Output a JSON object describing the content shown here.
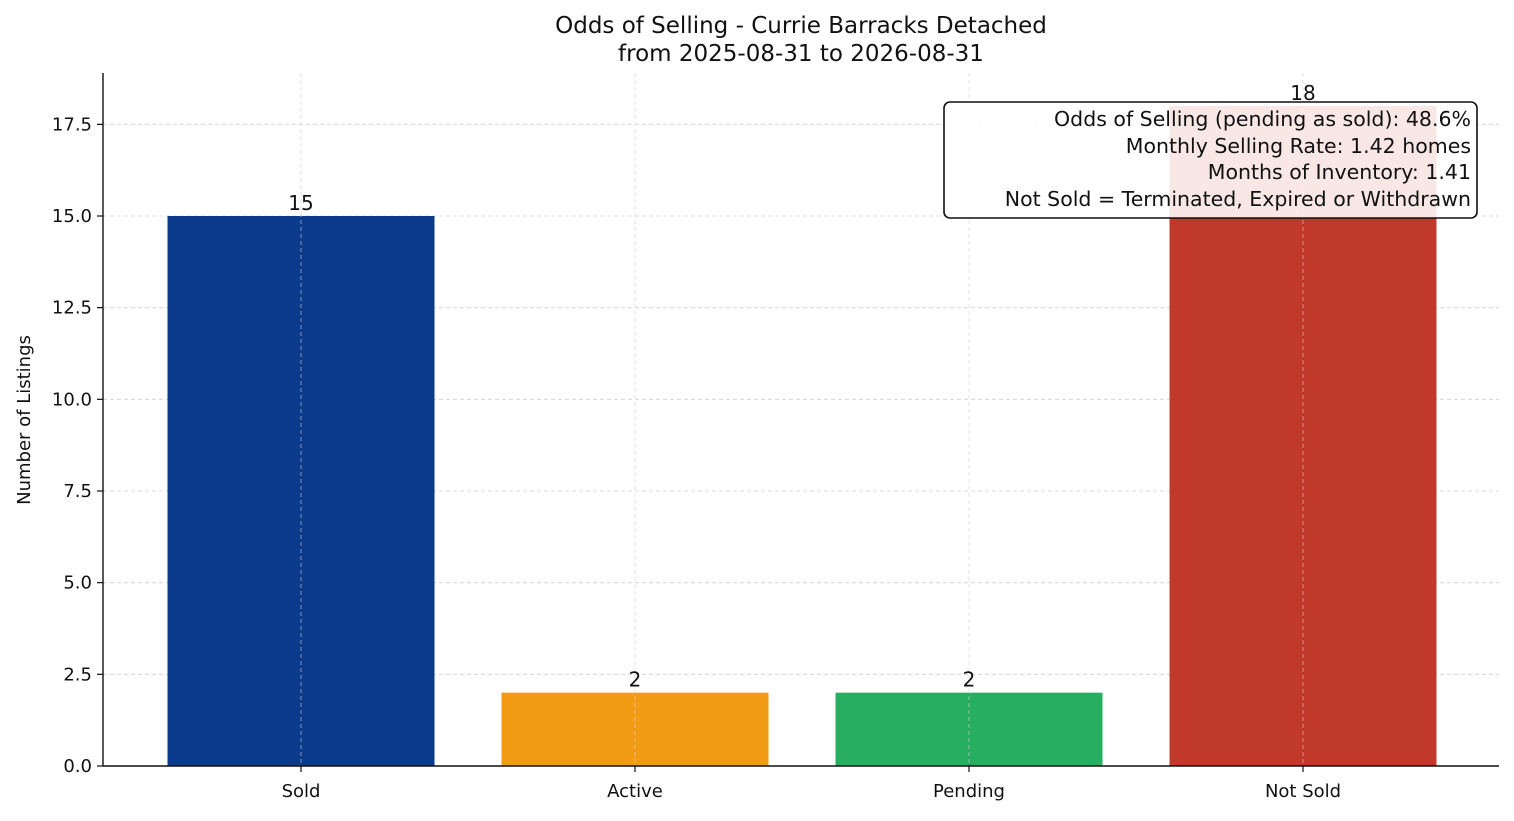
{
  "chart_data": {
    "type": "bar",
    "title": "Odds of Selling - Currie Barracks Detached",
    "subtitle": "from 2025-08-31 to 2026-08-31",
    "xlabel": "",
    "ylabel": "Number of Listings",
    "categories": [
      "Sold",
      "Active",
      "Pending",
      "Not Sold"
    ],
    "values": [
      15,
      2,
      2,
      18
    ],
    "bar_colors": [
      "#0b3a8c",
      "#f19c14",
      "#27ae60",
      "#c0392b"
    ],
    "ylim": [
      0,
      18.9
    ],
    "yticks": [
      0,
      2.5,
      5,
      7.5,
      10,
      12.5,
      15,
      17.5
    ],
    "ytick_labels": [
      "0.0",
      "2.5",
      "5.0",
      "7.5",
      "10.0",
      "12.5",
      "15.0",
      "17.5"
    ],
    "grid": true,
    "annotation": {
      "placement": "top-right",
      "lines": [
        "Odds of Selling (pending as sold): 48.6%",
        "Monthly Selling Rate: 1.42 homes",
        "Months of Inventory: 1.41",
        "Not Sold = Terminated, Expired or Withdrawn"
      ]
    }
  }
}
